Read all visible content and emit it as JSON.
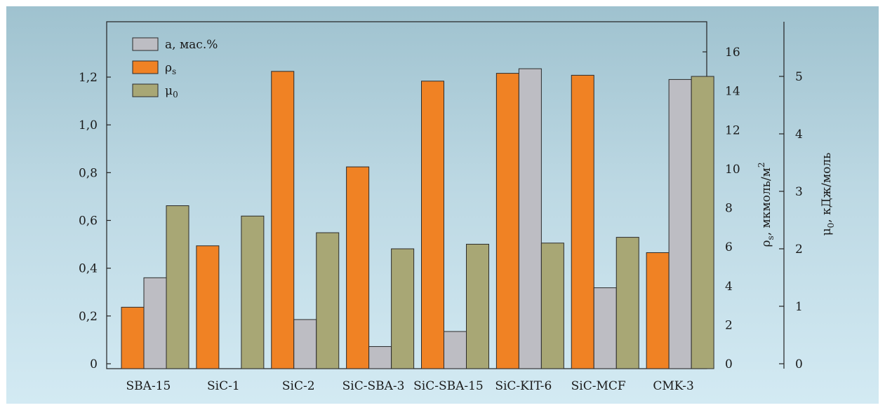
{
  "chart_data": {
    "type": "bar",
    "categories": [
      "SBA-15",
      "SiC-1",
      "SiC-2",
      "SiC-SBA-3",
      "SiC-SBA-15",
      "SiC-KIT-6",
      "SiC-MCF",
      "CMK-3"
    ],
    "series": [
      {
        "name": "ρs",
        "axis": "right1",
        "color": "#f08224",
        "values": [
          2.9,
          6.05,
          15.0,
          10.1,
          14.5,
          14.9,
          14.8,
          5.7
        ]
      },
      {
        "name": "a, мас.%",
        "axis": "left",
        "color": "#bdbdc3",
        "values": [
          0.36,
          null,
          0.185,
          0.072,
          0.135,
          1.235,
          0.318,
          1.19
        ]
      },
      {
        "name": "μ0",
        "axis": "right2",
        "color": "#a8a775",
        "values": [
          2.75,
          2.57,
          2.28,
          2.0,
          2.08,
          2.1,
          2.2,
          5.0
        ]
      }
    ],
    "axes": {
      "left": {
        "min": 0,
        "max": 1.25,
        "ticks": [
          "0",
          "0,2",
          "0,4",
          "0,6",
          "0,8",
          "1,0",
          "1,2"
        ],
        "tick_values": [
          0,
          0.2,
          0.4,
          0.6,
          0.8,
          1.0,
          1.2
        ],
        "label": ""
      },
      "right1": {
        "min": 0,
        "max": 16,
        "ticks": [
          "0",
          "2",
          "4",
          "6",
          "8",
          "10",
          "12",
          "14",
          "16"
        ],
        "tick_values": [
          0,
          2,
          4,
          6,
          8,
          10,
          12,
          14,
          16
        ],
        "label": "ρs, мкмоль/м²",
        "label_main": "ρ",
        "label_sub": "s",
        "label_rest": ", мкмоль/м",
        "label_sup": "2"
      },
      "right2": {
        "min": 0,
        "max": 5,
        "ticks": [
          "0",
          "1",
          "2",
          "3",
          "4",
          "5"
        ],
        "tick_values": [
          0,
          1,
          2,
          3,
          4,
          5
        ],
        "label": "μ0, кДж/моль",
        "label_main": "μ",
        "label_sub": "0",
        "label_rest": ", кДж/моль"
      }
    },
    "legend": {
      "placement": "top-left",
      "entries": [
        {
          "main": "a, мас.%",
          "sub": "",
          "color": "#bdbdc3"
        },
        {
          "main": "ρ",
          "sub": "s",
          "color": "#f08224"
        },
        {
          "main": "μ",
          "sub": "0",
          "color": "#a8a775"
        }
      ]
    },
    "grid": false
  }
}
